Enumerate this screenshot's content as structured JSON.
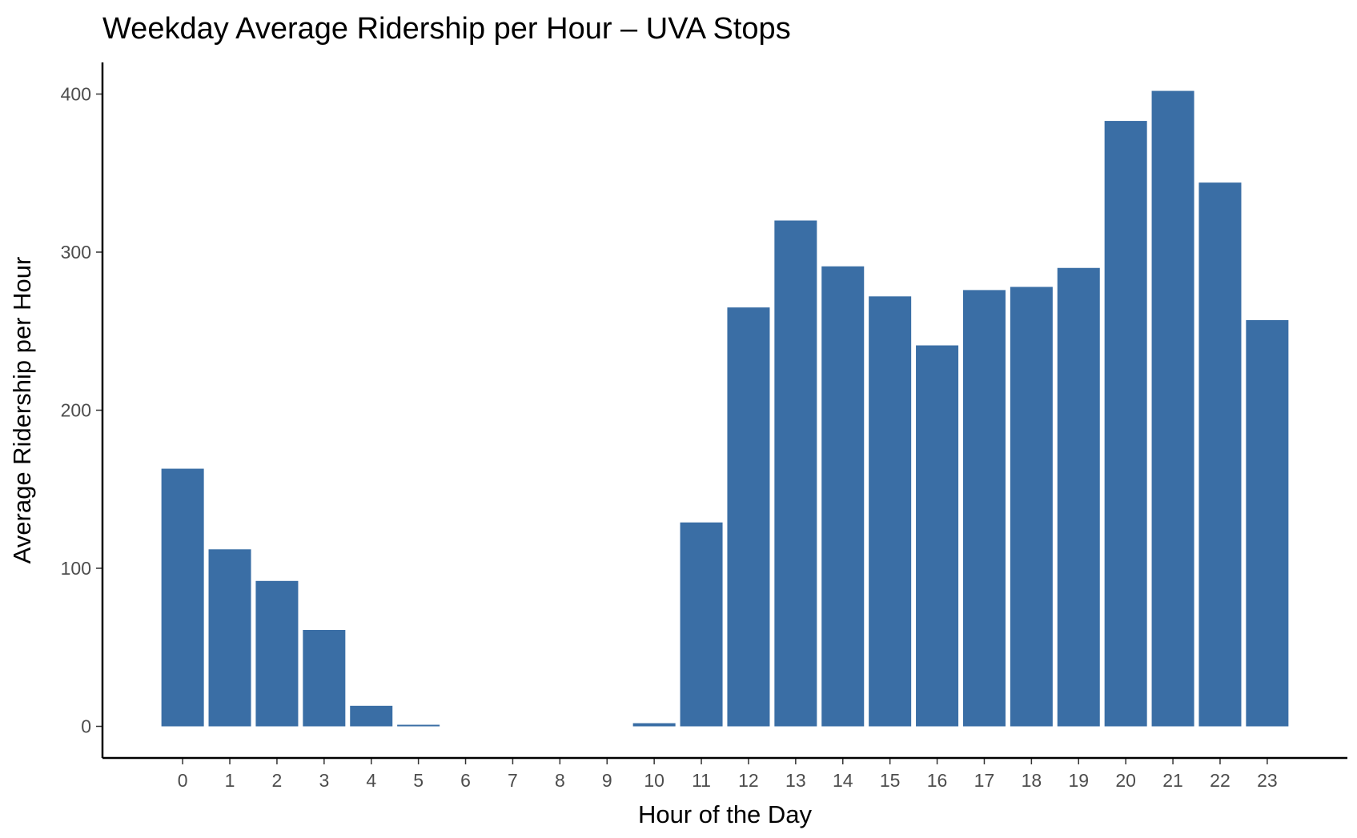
{
  "chart_data": {
    "type": "bar",
    "title": "Weekday Average Ridership per Hour – UVA Stops",
    "xlabel": "Hour of the Day",
    "ylabel": "Average Ridership per Hour",
    "categories": [
      "0",
      "1",
      "2",
      "3",
      "4",
      "5",
      "6",
      "7",
      "8",
      "9",
      "10",
      "11",
      "12",
      "13",
      "14",
      "15",
      "16",
      "17",
      "18",
      "19",
      "20",
      "21",
      "22",
      "23"
    ],
    "values": [
      163,
      112,
      92,
      61,
      13,
      1,
      0,
      0,
      0,
      0,
      2,
      129,
      265,
      320,
      291,
      272,
      241,
      276,
      278,
      290,
      383,
      402,
      344,
      257
    ],
    "yticks": [
      0,
      100,
      200,
      300,
      400
    ],
    "ylim": [
      -20,
      420
    ],
    "bar_color": "#3a6ea5",
    "grid": false,
    "legend": "none"
  }
}
